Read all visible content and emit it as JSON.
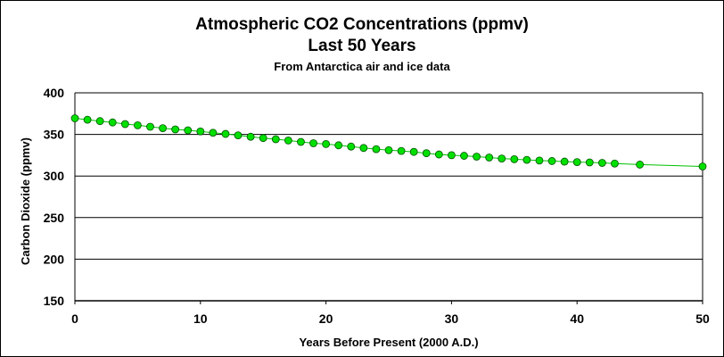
{
  "chart_data": {
    "type": "line",
    "title": "Atmospheric CO2 Concentrations (ppmv)",
    "title_line2": "Last 50 Years",
    "subtitle": "From Antarctica air and ice data",
    "xlabel": "Years Before Present (2000 A.D.)",
    "ylabel": "Carbon Dioxide (ppmv)",
    "xlim": [
      0,
      50
    ],
    "ylim": [
      150,
      400
    ],
    "xticks": [
      0,
      10,
      20,
      30,
      40,
      50
    ],
    "yticks": [
      150,
      200,
      250,
      300,
      350,
      400
    ],
    "grid": "horizontal",
    "series": [
      {
        "x": [
          0,
          1,
          2,
          3,
          4,
          5,
          6,
          7,
          8,
          9,
          10,
          11,
          12,
          13,
          14,
          15,
          16,
          17,
          18,
          19,
          20,
          21,
          22,
          23,
          24,
          25,
          26,
          27,
          28,
          29,
          30,
          31,
          32,
          33,
          34,
          35,
          36,
          37,
          38,
          39,
          40,
          41,
          42,
          43,
          45,
          50
        ],
        "y": [
          369.4,
          367.7,
          366.0,
          364.4,
          362.4,
          361.0,
          359.2,
          357.5,
          356.0,
          354.9,
          353.6,
          352.0,
          350.6,
          348.9,
          347.2,
          345.6,
          344.2,
          342.7,
          341.0,
          339.4,
          338.4,
          336.9,
          335.4,
          333.7,
          332.3,
          331.1,
          330.1,
          329.0,
          327.4,
          325.9,
          325.0,
          324.3,
          323.3,
          322.2,
          321.0,
          320.2,
          319.4,
          318.6,
          318.0,
          317.3,
          316.7,
          316.3,
          315.8,
          315.0,
          313.7,
          311.5
        ]
      }
    ],
    "colors": {
      "marker_fill": "#00e000",
      "marker_stroke": "#005000",
      "line": "#00c000",
      "grid": "#000000"
    }
  }
}
